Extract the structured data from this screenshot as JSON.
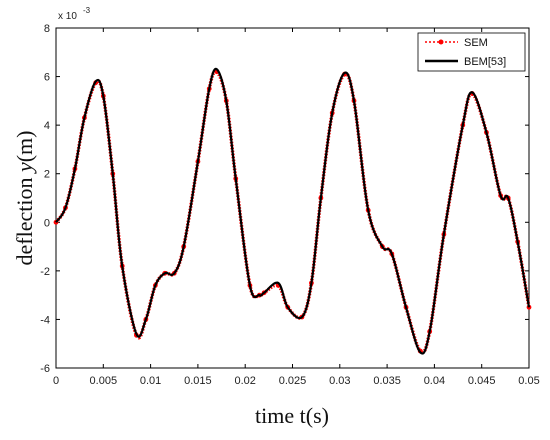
{
  "chart_data": {
    "type": "line",
    "xlabel": "time t(s)",
    "ylabel_prefix": "deflection ",
    "ylabel_var": "y",
    "ylabel_suffix": "(m)",
    "y_multiplier_base": "x 10",
    "y_multiplier_exp": "-3",
    "xlim": [
      0,
      0.05
    ],
    "ylim": [
      -6,
      8
    ],
    "xticks": [
      0,
      0.005,
      0.01,
      0.015,
      0.02,
      0.025,
      0.03,
      0.035,
      0.04,
      0.045,
      0.05
    ],
    "xtick_labels": [
      "0",
      "0.005",
      "0.01",
      "0.015",
      "0.02",
      "0.025",
      "0.03",
      "0.035",
      "0.04",
      "0.045",
      "0.05"
    ],
    "yticks": [
      -6,
      -4,
      -2,
      0,
      2,
      4,
      6,
      8
    ],
    "ytick_labels": [
      "-6",
      "-4",
      "-2",
      "0",
      "2",
      "4",
      "6",
      "8"
    ],
    "grid": false,
    "legend_position": "top-right",
    "series": [
      {
        "name": "SEM",
        "style": "dotted-markers",
        "color": "#ff0000",
        "x": [
          0,
          0.001,
          0.002,
          0.003,
          0.0042,
          0.005,
          0.006,
          0.007,
          0.0085,
          0.0095,
          0.0105,
          0.0115,
          0.0125,
          0.0135,
          0.015,
          0.0162,
          0.017,
          0.018,
          0.019,
          0.0205,
          0.0215,
          0.022,
          0.0235,
          0.0245,
          0.026,
          0.027,
          0.028,
          0.0292,
          0.0305,
          0.0315,
          0.033,
          0.0345,
          0.0355,
          0.037,
          0.0385,
          0.0395,
          0.041,
          0.043,
          0.044,
          0.0455,
          0.047,
          0.0478,
          0.0488,
          0.05
        ],
        "y": [
          0.0,
          0.6,
          2.2,
          4.3,
          5.75,
          5.2,
          2.0,
          -1.8,
          -4.65,
          -4.0,
          -2.6,
          -2.1,
          -2.1,
          -1.0,
          2.5,
          5.5,
          6.2,
          5.0,
          1.8,
          -2.6,
          -3.0,
          -2.9,
          -2.6,
          -3.5,
          -3.9,
          -2.5,
          1.0,
          4.5,
          6.1,
          5.0,
          0.5,
          -1.0,
          -1.3,
          -3.5,
          -5.3,
          -4.5,
          -0.5,
          4.0,
          5.3,
          3.7,
          1.1,
          1.0,
          -0.8,
          -3.5
        ]
      },
      {
        "name": "BEM[53]",
        "style": "solid",
        "color": "#000000",
        "x": [
          0,
          0.001,
          0.002,
          0.003,
          0.0042,
          0.005,
          0.006,
          0.007,
          0.0085,
          0.0095,
          0.0105,
          0.0115,
          0.0125,
          0.0135,
          0.015,
          0.0162,
          0.017,
          0.018,
          0.019,
          0.0205,
          0.0215,
          0.022,
          0.0235,
          0.0245,
          0.026,
          0.027,
          0.028,
          0.0292,
          0.0305,
          0.0315,
          0.033,
          0.0345,
          0.0355,
          0.037,
          0.0385,
          0.0395,
          0.041,
          0.043,
          0.044,
          0.0455,
          0.047,
          0.0478,
          0.0488,
          0.05
        ],
        "y": [
          0.0,
          0.6,
          2.2,
          4.3,
          5.8,
          5.2,
          2.0,
          -1.8,
          -4.6,
          -4.0,
          -2.6,
          -2.1,
          -2.1,
          -1.0,
          2.5,
          5.5,
          6.3,
          5.0,
          1.8,
          -2.6,
          -3.0,
          -2.9,
          -2.5,
          -3.5,
          -3.9,
          -2.5,
          1.0,
          4.5,
          6.15,
          5.0,
          0.5,
          -1.0,
          -1.3,
          -3.5,
          -5.35,
          -4.5,
          -0.5,
          4.0,
          5.35,
          3.7,
          1.1,
          1.0,
          -0.8,
          -3.5
        ]
      }
    ]
  }
}
